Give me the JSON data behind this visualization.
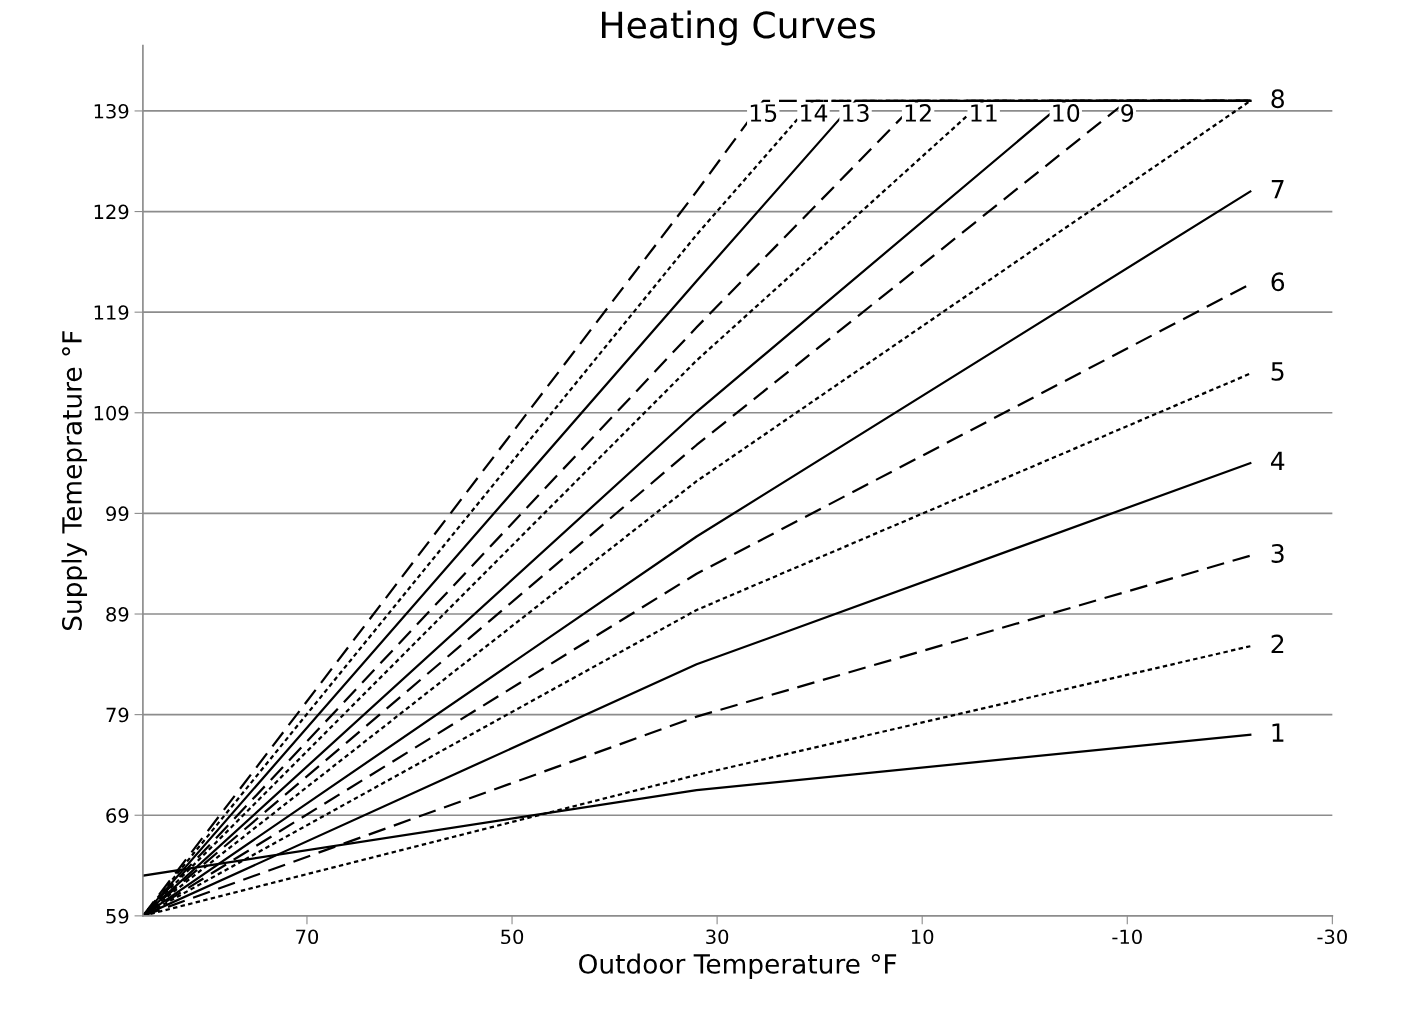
{
  "chart_data": {
    "type": "line",
    "title": "Heating Curves",
    "xlabel": "Outdoor Temperature °F",
    "ylabel": "Supply Temeprature °F",
    "xlim": [
      86,
      -30
    ],
    "xticks": [
      70,
      50,
      30,
      10,
      -10,
      -30
    ],
    "ylim": [
      59,
      145.5
    ],
    "yticks": [
      59,
      69,
      79,
      89,
      99,
      109,
      119,
      129,
      139
    ],
    "grid": "y",
    "marker": "none",
    "series": [
      {
        "name": "1",
        "color": "#000000",
        "line_style": "solid",
        "x": [
          86,
          32,
          -22
        ],
        "values": [
          63,
          71.5,
          77
        ]
      },
      {
        "name": "2",
        "color": "#000000",
        "line_style": "dotted",
        "x": [
          86,
          32,
          -22
        ],
        "values": [
          59,
          73,
          85.8
        ]
      },
      {
        "name": "3",
        "color": "#000000",
        "line_style": "dashed",
        "x": [
          86,
          32,
          -22
        ],
        "values": [
          59,
          78.8,
          94.8
        ]
      },
      {
        "name": "4",
        "color": "#000000",
        "line_style": "solid",
        "x": [
          86,
          32,
          -22
        ],
        "values": [
          59,
          84,
          104
        ]
      },
      {
        "name": "5",
        "color": "#000000",
        "line_style": "dotted",
        "x": [
          86,
          32,
          -22
        ],
        "values": [
          59,
          89.4,
          112.9
        ]
      },
      {
        "name": "6",
        "color": "#000000",
        "line_style": "dashed",
        "x": [
          86,
          32,
          -22
        ],
        "values": [
          59,
          93,
          121.8
        ]
      },
      {
        "name": "7",
        "color": "#000000",
        "line_style": "solid",
        "x": [
          86,
          32,
          -22
        ],
        "values": [
          59,
          96.7,
          131
        ]
      },
      {
        "name": "8",
        "color": "#000000",
        "line_style": "dotted",
        "x": [
          86,
          32,
          -22
        ],
        "values": [
          59,
          102.2,
          140
        ]
      },
      {
        "name": "9",
        "color": "#000000",
        "line_style": "dashed",
        "x": [
          86,
          32,
          -10,
          -22
        ],
        "values": [
          59,
          105.8,
          140,
          140
        ]
      },
      {
        "name": "10",
        "color": "#000000",
        "line_style": "solid",
        "x": [
          86,
          32,
          -4,
          -22
        ],
        "values": [
          59,
          109.1,
          140,
          140
        ]
      },
      {
        "name": "11",
        "color": "#000000",
        "line_style": "dotted",
        "x": [
          86,
          32,
          4,
          -22
        ],
        "values": [
          59,
          114.2,
          140,
          140
        ]
      },
      {
        "name": "12",
        "color": "#000000",
        "line_style": "dashed",
        "x": [
          86,
          32,
          10.4,
          -22
        ],
        "values": [
          59,
          117.5,
          140,
          140
        ]
      },
      {
        "name": "13",
        "color": "#000000",
        "line_style": "solid",
        "x": [
          86,
          32,
          16.5,
          -22
        ],
        "values": [
          59,
          122.1,
          140,
          140
        ]
      },
      {
        "name": "14",
        "color": "#000000",
        "line_style": "dotted",
        "x": [
          86,
          32,
          20.6,
          -22
        ],
        "values": [
          59,
          126.7,
          140,
          140
        ]
      },
      {
        "name": "15",
        "color": "#000000",
        "line_style": "dashed",
        "x": [
          86,
          32,
          25.5,
          -22
        ],
        "values": [
          59,
          131,
          140,
          140
        ]
      }
    ]
  }
}
